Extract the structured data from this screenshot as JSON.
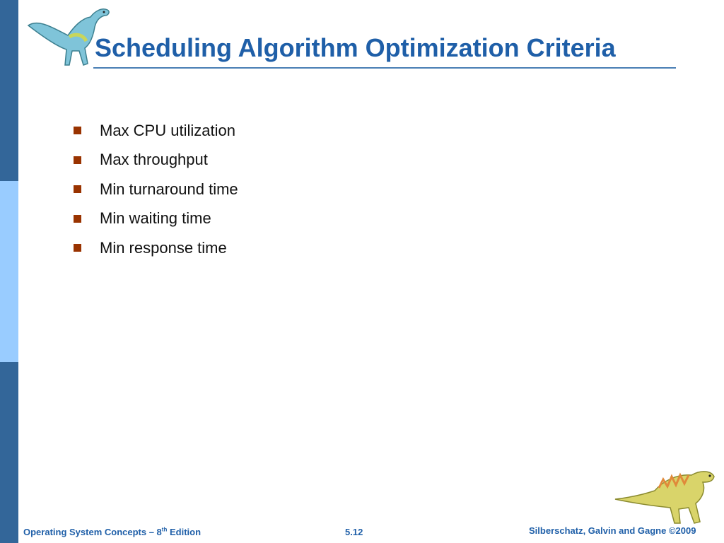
{
  "slide": {
    "title": "Scheduling Algorithm Optimization Criteria",
    "bullets": [
      "Max CPU utilization",
      "Max throughput",
      "Min turnaround time",
      "Min waiting time",
      "Min response time"
    ]
  },
  "footer": {
    "book_title": "Operating System Concepts – 8",
    "edition_superscript": "th",
    "edition_word": "Edition",
    "slide_number": "5.12",
    "copyright": "Silberschatz, Galvin and Gagne ©2009"
  },
  "icons": {
    "top_left": "dinosaur-icon",
    "bottom_right": "dinosaur-icon"
  },
  "colors": {
    "title": "#1f5fa8",
    "bullet": "#993300",
    "side_bar_dark": "#336699",
    "side_bar_light": "#99ccff"
  }
}
